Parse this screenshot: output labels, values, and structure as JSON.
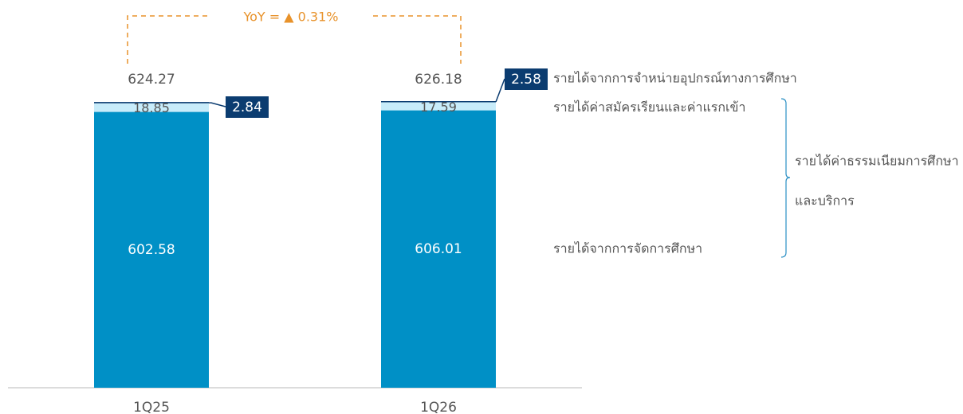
{
  "chart_data": {
    "type": "stacked_bar",
    "categories": [
      "1Q25",
      "1Q26"
    ],
    "series": [
      {
        "name": "รายได้จากการจัดการศึกษา",
        "color": "#0090c6",
        "values": [
          602.58,
          606.01
        ]
      },
      {
        "name": "รายได้ค่าสมัครเรียนและค่าแรกเข้า",
        "color": "#c8ecfa",
        "values": [
          18.85,
          17.59
        ]
      },
      {
        "name": "รายได้จากการจำหน่ายอุปกรณ์ทางการศึกษา",
        "color": "#0b3c70",
        "values": [
          2.84,
          2.58
        ]
      }
    ],
    "totals": [
      624.27,
      626.18
    ],
    "annotation": "YoY = ▲ 0.31%",
    "group_label": [
      "รายได้ค่าธรรมเนียมการศึกษา",
      "และบริการ"
    ]
  }
}
